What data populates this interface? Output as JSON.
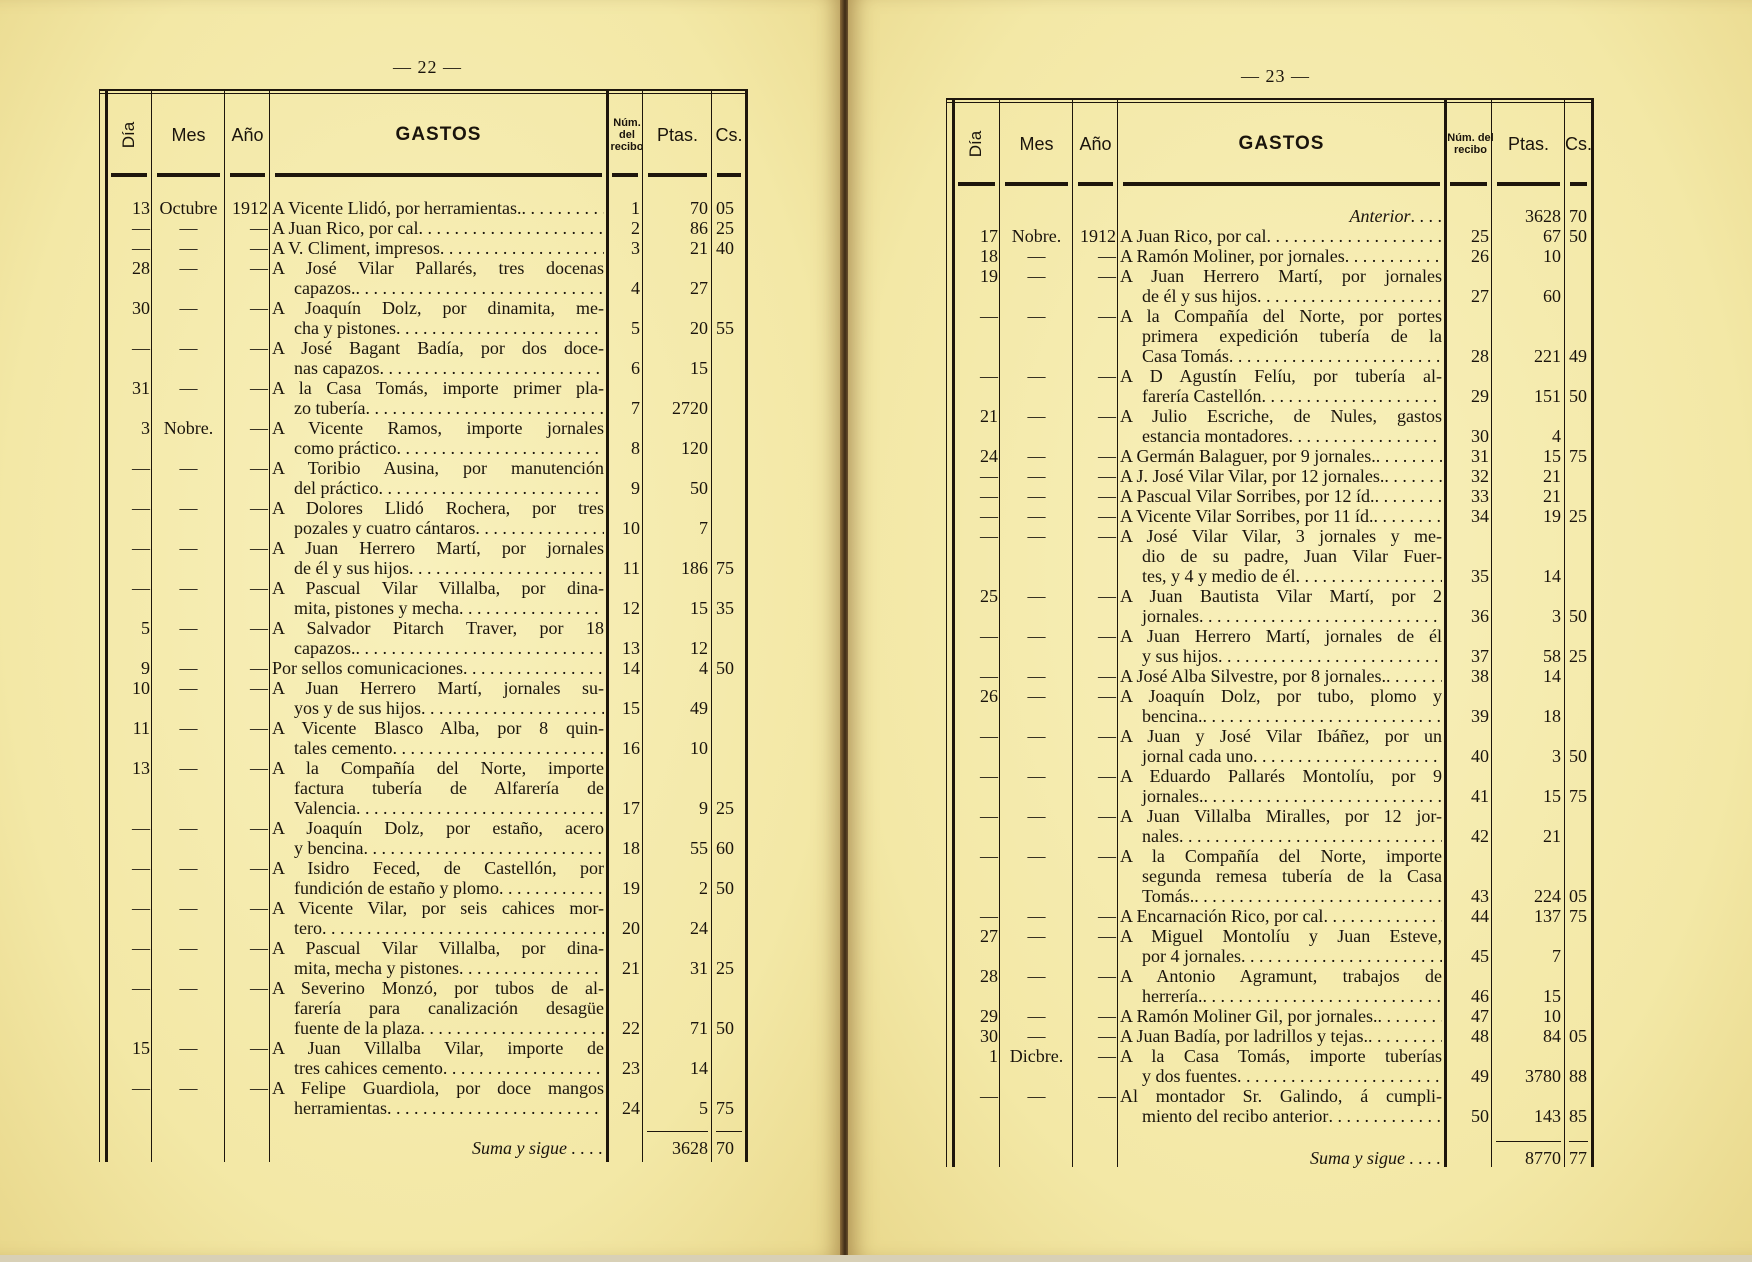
{
  "columns": {
    "dia": "Día",
    "mes": "Mes",
    "ano": "Año",
    "gastos": "GASTOS",
    "num": "Núm. del recibo",
    "ptas": "Ptas.",
    "cs": "Cs."
  },
  "pages": [
    {
      "page_number": "— 22 —",
      "carry_forward": null,
      "entries": [
        {
          "day": "13",
          "month": "Octubre",
          "year": "1912",
          "lines": [
            "A Vicente Llidó, por herramientas."
          ],
          "num": "1",
          "ptas": "70",
          "cs": "05"
        },
        {
          "day": "—",
          "month": "—",
          "year": "—",
          "lines": [
            "A Juan Rico, por cal"
          ],
          "num": "2",
          "ptas": "86",
          "cs": "25"
        },
        {
          "day": "—",
          "month": "—",
          "year": "—",
          "lines": [
            "A V. Climent, impresos"
          ],
          "num": "3",
          "ptas": "21",
          "cs": "40"
        },
        {
          "day": "28",
          "month": "—",
          "year": "—",
          "lines": [
            "A José Vilar Pallarés, tres docenas",
            "capazos."
          ],
          "num": "4",
          "ptas": "27",
          "cs": ""
        },
        {
          "day": "30",
          "month": "—",
          "year": "—",
          "lines": [
            "A Joaquín Dolz, por dinamita, me-",
            "cha y pistones"
          ],
          "num": "5",
          "ptas": "20",
          "cs": "55"
        },
        {
          "day": "—",
          "month": "—",
          "year": "—",
          "lines": [
            "A José Bagant Badía, por dos doce-",
            "nas capazos"
          ],
          "num": "6",
          "ptas": "15",
          "cs": ""
        },
        {
          "day": "31",
          "month": "—",
          "year": "—",
          "lines": [
            "A la Casa Tomás, importe primer pla-",
            "zo tubería"
          ],
          "num": "7",
          "ptas": "2720",
          "cs": ""
        },
        {
          "day": "3",
          "month": "Nobre.",
          "year": "—",
          "lines": [
            "A Vicente Ramos, importe jornales",
            "como práctico"
          ],
          "num": "8",
          "ptas": "120",
          "cs": ""
        },
        {
          "day": "—",
          "month": "—",
          "year": "—",
          "lines": [
            "A Toribio Ausina, por manutención",
            "del práctico"
          ],
          "num": "9",
          "ptas": "50",
          "cs": ""
        },
        {
          "day": "—",
          "month": "—",
          "year": "—",
          "lines": [
            "A Dolores Llidó Rochera, por tres",
            "pozales y cuatro cántaros"
          ],
          "num": "10",
          "ptas": "7",
          "cs": ""
        },
        {
          "day": "—",
          "month": "—",
          "year": "—",
          "lines": [
            "A Juan Herrero Martí, por jornales",
            "de él y sus hijos"
          ],
          "num": "11",
          "ptas": "186",
          "cs": "75"
        },
        {
          "day": "—",
          "month": "—",
          "year": "—",
          "lines": [
            "A Pascual Vilar Villalba, por dina-",
            "mita, pistones y mecha"
          ],
          "num": "12",
          "ptas": "15",
          "cs": "35"
        },
        {
          "day": "5",
          "month": "—",
          "year": "—",
          "lines": [
            "A Salvador Pitarch Traver, por 18",
            "capazos."
          ],
          "num": "13",
          "ptas": "12",
          "cs": ""
        },
        {
          "day": "9",
          "month": "—",
          "year": "—",
          "lines": [
            "Por sellos comunicaciones"
          ],
          "num": "14",
          "ptas": "4",
          "cs": "50"
        },
        {
          "day": "10",
          "month": "—",
          "year": "—",
          "lines": [
            "A Juan Herrero Martí, jornales su-",
            "yos y de sus hijos"
          ],
          "num": "15",
          "ptas": "49",
          "cs": ""
        },
        {
          "day": "11",
          "month": "—",
          "year": "—",
          "lines": [
            "A Vicente Blasco Alba, por 8 quin-",
            "tales cemento"
          ],
          "num": "16",
          "ptas": "10",
          "cs": ""
        },
        {
          "day": "13",
          "month": "—",
          "year": "—",
          "lines": [
            "A la Compañía del Norte, importe",
            "factura tubería de Alfarería de",
            "Valencia"
          ],
          "num": "17",
          "ptas": "9",
          "cs": "25"
        },
        {
          "day": "—",
          "month": "—",
          "year": "—",
          "lines": [
            "A Joaquín Dolz, por estaño, acero",
            "y bencina"
          ],
          "num": "18",
          "ptas": "55",
          "cs": "60"
        },
        {
          "day": "—",
          "month": "—",
          "year": "—",
          "lines": [
            "A Isidro Feced, de Castellón, por",
            "fundición de estaño y plomo"
          ],
          "num": "19",
          "ptas": "2",
          "cs": "50"
        },
        {
          "day": "—",
          "month": "—",
          "year": "—",
          "lines": [
            "A Vicente Vilar, por seis cahices mor-",
            "tero"
          ],
          "num": "20",
          "ptas": "24",
          "cs": ""
        },
        {
          "day": "—",
          "month": "—",
          "year": "—",
          "lines": [
            "A Pascual Vilar Villalba, por dina-",
            "mita, mecha y pistones"
          ],
          "num": "21",
          "ptas": "31",
          "cs": "25"
        },
        {
          "day": "—",
          "month": "—",
          "year": "—",
          "lines": [
            "A Severino Monzó, por tubos de al-",
            "farería para canalización desagüe",
            "fuente de la plaza"
          ],
          "num": "22",
          "ptas": "71",
          "cs": "50"
        },
        {
          "day": "15",
          "month": "—",
          "year": "—",
          "lines": [
            "A Juan Villalba Vilar, importe de",
            "tres cahices cemento"
          ],
          "num": "23",
          "ptas": "14",
          "cs": ""
        },
        {
          "day": "—",
          "month": "—",
          "year": "—",
          "lines": [
            "A Felipe Guardiola, por doce mangos",
            "herramientas"
          ],
          "num": "24",
          "ptas": "5",
          "cs": "75"
        }
      ],
      "total": {
        "label": "Suma y sigue",
        "ptas": "3628",
        "cs": "70"
      }
    },
    {
      "page_number": "— 23 —",
      "carry_forward": {
        "label": "Anterior",
        "ptas": "3628",
        "cs": "70"
      },
      "entries": [
        {
          "day": "17",
          "month": "Nobre.",
          "year": "1912",
          "lines": [
            "A Juan Rico, por cal"
          ],
          "num": "25",
          "ptas": "67",
          "cs": "50"
        },
        {
          "day": "18",
          "month": "—",
          "year": "—",
          "lines": [
            "A Ramón Moliner, por jornales"
          ],
          "num": "26",
          "ptas": "10",
          "cs": ""
        },
        {
          "day": "19",
          "month": "—",
          "year": "—",
          "lines": [
            "A Juan Herrero Martí, por jornales",
            "de él y sus hijos"
          ],
          "num": "27",
          "ptas": "60",
          "cs": ""
        },
        {
          "day": "—",
          "month": "—",
          "year": "—",
          "lines": [
            "A la Compañía del Norte, por portes",
            "primera expedición tubería de la",
            "Casa Tomás"
          ],
          "num": "28",
          "ptas": "221",
          "cs": "49"
        },
        {
          "day": "—",
          "month": "—",
          "year": "—",
          "lines": [
            "A D Agustín Felíu, por tubería al-",
            "farería Castellón"
          ],
          "num": "29",
          "ptas": "151",
          "cs": "50"
        },
        {
          "day": "21",
          "month": "—",
          "year": "—",
          "lines": [
            "A Julio Escriche, de Nules, gastos",
            "estancia montadores"
          ],
          "num": "30",
          "ptas": "4",
          "cs": ""
        },
        {
          "day": "24",
          "month": "—",
          "year": "—",
          "lines": [
            "A Germán Balaguer, por 9 jornales."
          ],
          "num": "31",
          "ptas": "15",
          "cs": "75"
        },
        {
          "day": "—",
          "month": "—",
          "year": "—",
          "lines": [
            "A J. José Vilar Vilar, por 12 jornales."
          ],
          "num": "32",
          "ptas": "21",
          "cs": ""
        },
        {
          "day": "—",
          "month": "—",
          "year": "—",
          "lines": [
            "A Pascual Vilar Sorribes, por 12 íd."
          ],
          "num": "33",
          "ptas": "21",
          "cs": ""
        },
        {
          "day": "—",
          "month": "—",
          "year": "—",
          "lines": [
            "A Vicente Vilar Sorribes, por 11 íd."
          ],
          "num": "34",
          "ptas": "19",
          "cs": "25"
        },
        {
          "day": "—",
          "month": "—",
          "year": "—",
          "lines": [
            "A José Vilar Vilar, 3 jornales y me-",
            "dio de su padre, Juan Vilar Fuer-",
            "tes, y 4 y medio de él"
          ],
          "num": "35",
          "ptas": "14",
          "cs": ""
        },
        {
          "day": "25",
          "month": "—",
          "year": "—",
          "lines": [
            "A Juan Bautista Vilar Martí, por 2",
            "jornales"
          ],
          "num": "36",
          "ptas": "3",
          "cs": "50"
        },
        {
          "day": "—",
          "month": "—",
          "year": "—",
          "lines": [
            "A Juan Herrero Martí, jornales de él",
            "y sus hijos"
          ],
          "num": "37",
          "ptas": "58",
          "cs": "25"
        },
        {
          "day": "—",
          "month": "—",
          "year": "—",
          "lines": [
            "A José Alba Silvestre, por 8 jornales."
          ],
          "num": "38",
          "ptas": "14",
          "cs": ""
        },
        {
          "day": "26",
          "month": "—",
          "year": "—",
          "lines": [
            "A Joaquín Dolz, por tubo, plomo y",
            "bencina."
          ],
          "num": "39",
          "ptas": "18",
          "cs": ""
        },
        {
          "day": "—",
          "month": "—",
          "year": "—",
          "lines": [
            "A Juan y José Vilar Ibáñez, por un",
            "jornal cada uno"
          ],
          "num": "40",
          "ptas": "3",
          "cs": "50"
        },
        {
          "day": "—",
          "month": "—",
          "year": "—",
          "lines": [
            "A Eduardo Pallarés Montolíu, por 9",
            "jornales."
          ],
          "num": "41",
          "ptas": "15",
          "cs": "75"
        },
        {
          "day": "—",
          "month": "—",
          "year": "—",
          "lines": [
            "A Juan Villalba Miralles, por 12 jor-",
            "nales"
          ],
          "num": "42",
          "ptas": "21",
          "cs": ""
        },
        {
          "day": "—",
          "month": "—",
          "year": "—",
          "lines": [
            "A la Compañía del Norte, importe",
            "segunda remesa tubería de la Casa",
            "Tomás."
          ],
          "num": "43",
          "ptas": "224",
          "cs": "05"
        },
        {
          "day": "—",
          "month": "—",
          "year": "—",
          "lines": [
            "A Encarnación Rico, por cal"
          ],
          "num": "44",
          "ptas": "137",
          "cs": "75"
        },
        {
          "day": "27",
          "month": "—",
          "year": "—",
          "lines": [
            "A Miguel Montolíu y Juan Esteve,",
            "por 4 jornales"
          ],
          "num": "45",
          "ptas": "7",
          "cs": ""
        },
        {
          "day": "28",
          "month": "—",
          "year": "—",
          "lines": [
            "A Antonio Agramunt, trabajos de",
            "herrería."
          ],
          "num": "46",
          "ptas": "15",
          "cs": ""
        },
        {
          "day": "29",
          "month": "—",
          "year": "—",
          "lines": [
            "A Ramón Moliner Gil, por jornales."
          ],
          "num": "47",
          "ptas": "10",
          "cs": ""
        },
        {
          "day": "30",
          "month": "—",
          "year": "—",
          "lines": [
            "A Juan Badía, por ladrillos y tejas."
          ],
          "num": "48",
          "ptas": "84",
          "cs": "05"
        },
        {
          "day": "1",
          "month": "Dicbre.",
          "year": "—",
          "lines": [
            "A la Casa Tomás, importe tuberías",
            "y dos fuentes"
          ],
          "num": "49",
          "ptas": "3780",
          "cs": "88"
        },
        {
          "day": "—",
          "month": "—",
          "year": "—",
          "lines": [
            "Al montador Sr. Galindo, á cumpli-",
            "miento del recibo anterior"
          ],
          "num": "50",
          "ptas": "143",
          "cs": "85"
        }
      ],
      "total": {
        "label": "Suma y sigue",
        "ptas": "8770",
        "cs": "77"
      }
    }
  ]
}
